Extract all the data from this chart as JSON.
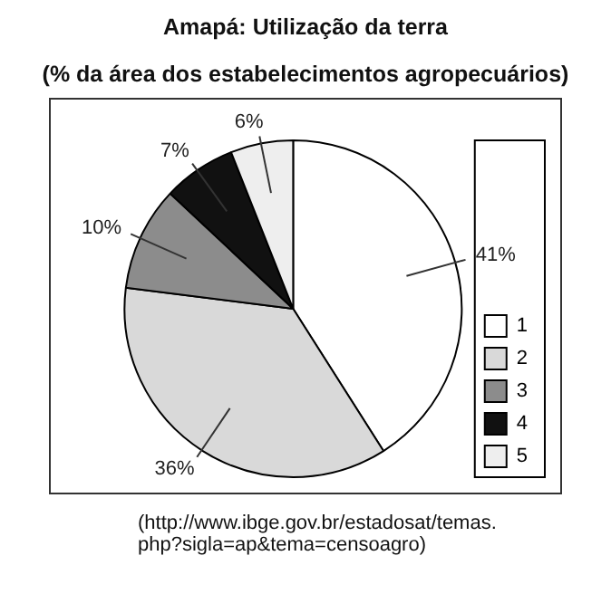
{
  "chart_data": {
    "type": "pie",
    "title": "Amapá: Utilização da terra",
    "subtitle": "(% da área dos estabelecimentos agropecuários)",
    "categories": [
      "1",
      "2",
      "3",
      "4",
      "5"
    ],
    "values": [
      41,
      36,
      10,
      7,
      6
    ],
    "colors": [
      "#ffffff",
      "#d9d9d9",
      "#8c8c8c",
      "#111111",
      "#eeeeee"
    ],
    "value_labels": [
      "41%",
      "36%",
      "10%",
      "7%",
      "6%"
    ],
    "legend": "right",
    "annotations": [
      "(http://www.ibge.gov.br/estadosat/temas.\nphp?sigla=ap&tema=censoagro)"
    ]
  }
}
